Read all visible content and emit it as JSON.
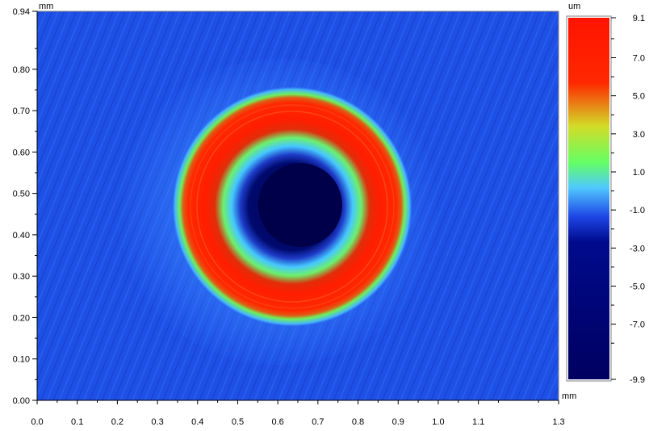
{
  "chart_data": {
    "type": "heatmap",
    "x_unit_label": "mm",
    "y_unit_label": "mm",
    "x_ticks": [
      0.0,
      0.1,
      0.2,
      0.3,
      0.4,
      0.5,
      0.6,
      0.7,
      0.8,
      0.9,
      1.0,
      1.1,
      1.3
    ],
    "x_tick_labels": [
      "0.0",
      "0.1",
      "0.2",
      "0.3",
      "0.4",
      "0.5",
      "0.6",
      "0.7",
      "0.8",
      "0.9",
      "1.0",
      "1.1",
      "1.3"
    ],
    "y_ticks": [
      0.0,
      0.1,
      0.2,
      0.3,
      0.4,
      0.5,
      0.6,
      0.7,
      0.8,
      0.94
    ],
    "y_tick_labels": [
      "0.00",
      "0.10",
      "0.20",
      "0.30",
      "0.40",
      "0.50",
      "0.60",
      "0.70",
      "0.80",
      "0.94"
    ],
    "xlim": [
      0.0,
      1.3
    ],
    "ylim": [
      0.0,
      0.94
    ],
    "colorbar": {
      "unit_label": "um",
      "range": [
        -9.9,
        9.1
      ],
      "tick_values": [
        9.1,
        7.0,
        5.0,
        3.0,
        1.0,
        -1.0,
        -3.0,
        -5.0,
        -7.0,
        -9.9
      ],
      "tick_labels": [
        "9.1",
        "7.0",
        "5.0",
        "3.0",
        "1.0",
        "-1.0",
        "-3.0",
        "-5.0",
        "-7.0",
        "-9.9"
      ],
      "colors": [
        "#000060",
        "#000a8c",
        "#1e46e6",
        "#50c8ff",
        "#64ff64",
        "#c8dc32",
        "#ff2800",
        "#ff1400"
      ]
    },
    "features": {
      "background_value": -1.5,
      "crater_center": [
        0.62,
        0.47
      ],
      "pit_radius": 0.11,
      "pit_value": -9.9,
      "rim_radius": 0.27,
      "rim_peak_value": 9.1
    }
  }
}
